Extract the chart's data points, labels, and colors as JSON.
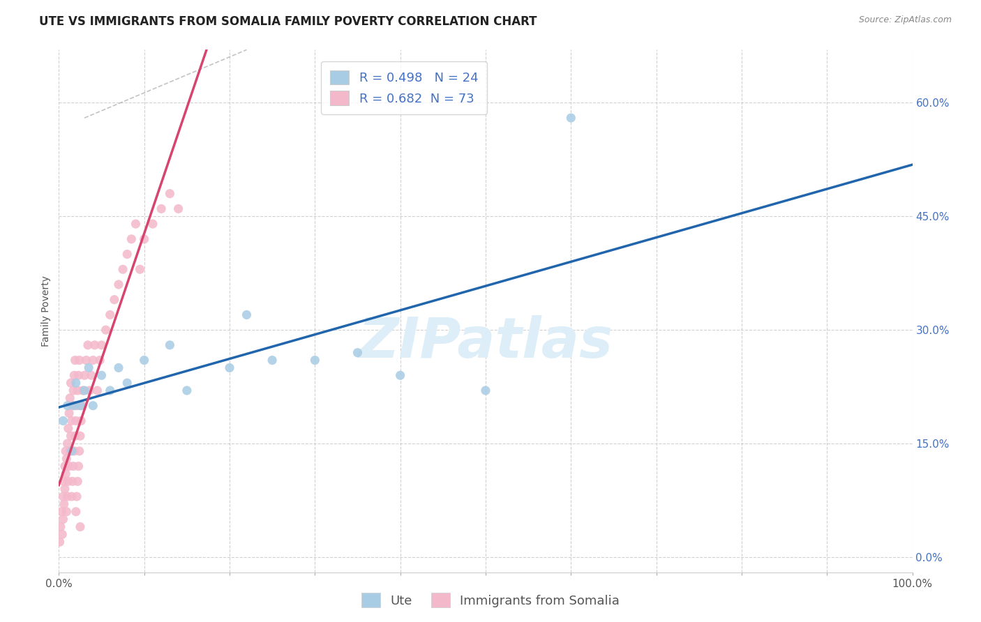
{
  "title": "UTE VS IMMIGRANTS FROM SOMALIA FAMILY POVERTY CORRELATION CHART",
  "source_text": "Source: ZipAtlas.com",
  "ylabel": "Family Poverty",
  "legend_labels": [
    "Ute",
    "Immigrants from Somalia"
  ],
  "ute_R": 0.498,
  "ute_N": 24,
  "somalia_R": 0.682,
  "somalia_N": 73,
  "ute_color": "#a8cce4",
  "somalia_color": "#f4b8cb",
  "ute_line_color": "#2166ac",
  "somalia_line_color": "#d6456e",
  "background_color": "#ffffff",
  "grid_color": "#cccccc",
  "xlim": [
    0,
    1.0
  ],
  "ylim": [
    -0.02,
    0.67
  ],
  "ytick_vals": [
    0.0,
    0.15,
    0.3,
    0.45,
    0.6
  ],
  "xtick_vals": [
    0.0,
    1.0
  ],
  "xtick_minor_vals": [
    0.1,
    0.2,
    0.3,
    0.4,
    0.5,
    0.6,
    0.7,
    0.8,
    0.9
  ],
  "ute_x": [
    0.005,
    0.01,
    0.015,
    0.018,
    0.02,
    0.025,
    0.03,
    0.035,
    0.04,
    0.05,
    0.06,
    0.07,
    0.08,
    0.1,
    0.13,
    0.15,
    0.2,
    0.25,
    0.3,
    0.35,
    0.4,
    0.5,
    0.6,
    0.22
  ],
  "ute_y": [
    0.18,
    0.2,
    0.14,
    0.2,
    0.23,
    0.2,
    0.22,
    0.25,
    0.2,
    0.24,
    0.22,
    0.25,
    0.23,
    0.26,
    0.28,
    0.22,
    0.25,
    0.26,
    0.26,
    0.27,
    0.24,
    0.22,
    0.58,
    0.32
  ],
  "somalia_x": [
    0.001,
    0.002,
    0.003,
    0.004,
    0.005,
    0.005,
    0.006,
    0.006,
    0.007,
    0.007,
    0.008,
    0.008,
    0.009,
    0.009,
    0.01,
    0.01,
    0.011,
    0.011,
    0.012,
    0.012,
    0.013,
    0.013,
    0.014,
    0.014,
    0.015,
    0.015,
    0.016,
    0.016,
    0.017,
    0.017,
    0.018,
    0.018,
    0.019,
    0.019,
    0.02,
    0.02,
    0.021,
    0.021,
    0.022,
    0.022,
    0.023,
    0.023,
    0.024,
    0.024,
    0.025,
    0.025,
    0.026,
    0.027,
    0.028,
    0.03,
    0.032,
    0.034,
    0.036,
    0.038,
    0.04,
    0.042,
    0.045,
    0.048,
    0.05,
    0.055,
    0.06,
    0.065,
    0.07,
    0.075,
    0.08,
    0.085,
    0.09,
    0.095,
    0.1,
    0.11,
    0.12,
    0.13,
    0.14
  ],
  "somalia_y": [
    0.02,
    0.04,
    0.06,
    0.03,
    0.08,
    0.05,
    0.1,
    0.07,
    0.12,
    0.09,
    0.14,
    0.11,
    0.06,
    0.13,
    0.08,
    0.15,
    0.1,
    0.17,
    0.12,
    0.19,
    0.14,
    0.21,
    0.16,
    0.23,
    0.08,
    0.18,
    0.1,
    0.2,
    0.12,
    0.22,
    0.14,
    0.24,
    0.16,
    0.26,
    0.06,
    0.18,
    0.08,
    0.2,
    0.1,
    0.22,
    0.12,
    0.24,
    0.14,
    0.26,
    0.04,
    0.16,
    0.18,
    0.2,
    0.22,
    0.24,
    0.26,
    0.28,
    0.22,
    0.24,
    0.26,
    0.28,
    0.22,
    0.26,
    0.28,
    0.3,
    0.32,
    0.34,
    0.36,
    0.38,
    0.4,
    0.42,
    0.44,
    0.38,
    0.42,
    0.44,
    0.46,
    0.48,
    0.46
  ],
  "watermark_color": "#ddeef8",
  "title_fontsize": 12,
  "axis_label_fontsize": 10,
  "tick_fontsize": 11,
  "legend_fontsize": 13,
  "source_fontsize": 9
}
